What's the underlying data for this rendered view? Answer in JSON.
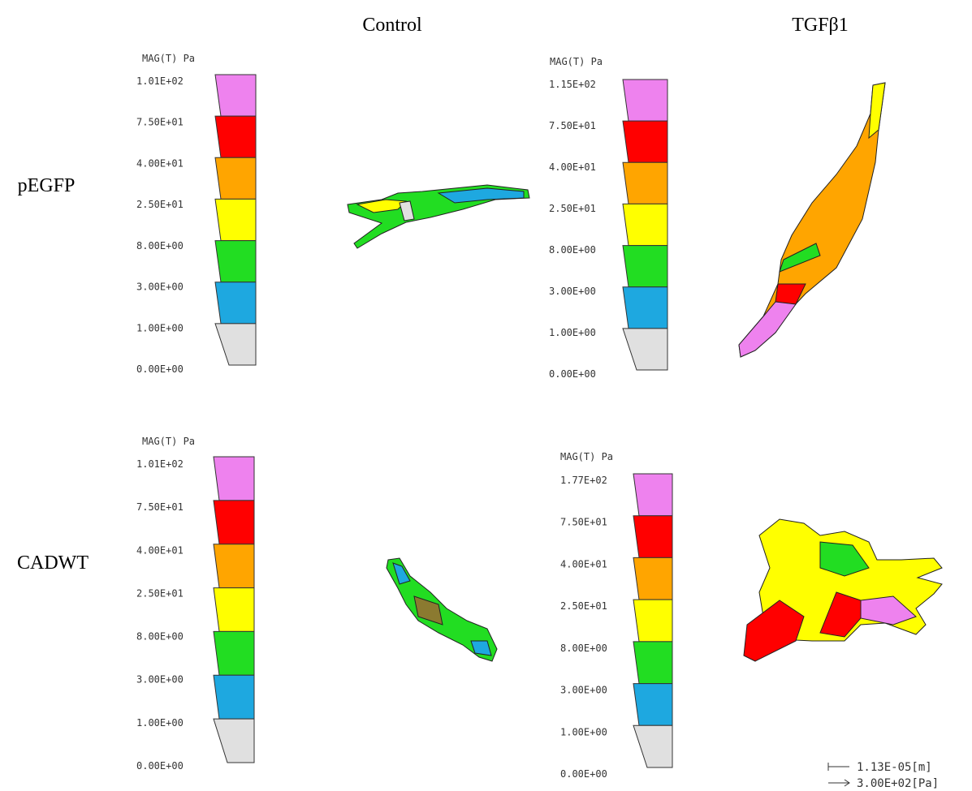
{
  "columns": [
    "Control",
    "TGFβ1"
  ],
  "rows": [
    "pEGFP",
    "CADWT"
  ],
  "legend_colors": [
    "#ee82ee",
    "#ff0000",
    "#ffa500",
    "#ffff00",
    "#22dd22",
    "#1ea8e0",
    "#e0e0e0"
  ],
  "panels": [
    {
      "legend": {
        "title": "MAG(T) Pa",
        "labels": [
          "1.01E+02",
          "7.50E+01",
          "4.00E+01",
          "2.50E+01",
          "8.00E+00",
          "3.00E+00",
          "1.00E+00",
          "0.00E+00"
        ]
      }
    },
    {
      "legend": {
        "title": "MAG(T) Pa",
        "labels": [
          "1.15E+02",
          "7.50E+01",
          "4.00E+01",
          "2.50E+01",
          "8.00E+00",
          "3.00E+00",
          "1.00E+00",
          "0.00E+00"
        ]
      }
    },
    {
      "legend": {
        "title": "MAG(T) Pa",
        "labels": [
          "1.01E+02",
          "7.50E+01",
          "4.00E+01",
          "2.50E+01",
          "8.00E+00",
          "3.00E+00",
          "1.00E+00",
          "0.00E+00"
        ]
      }
    },
    {
      "legend": {
        "title": "MAG(T) Pa",
        "labels": [
          "1.77E+02",
          "7.50E+01",
          "4.00E+01",
          "2.50E+01",
          "8.00E+00",
          "3.00E+00",
          "1.00E+00",
          "0.00E+00"
        ]
      }
    }
  ],
  "scale": {
    "length": "1.13E-05[m]",
    "traction": "3.00E+02[Pa]"
  }
}
